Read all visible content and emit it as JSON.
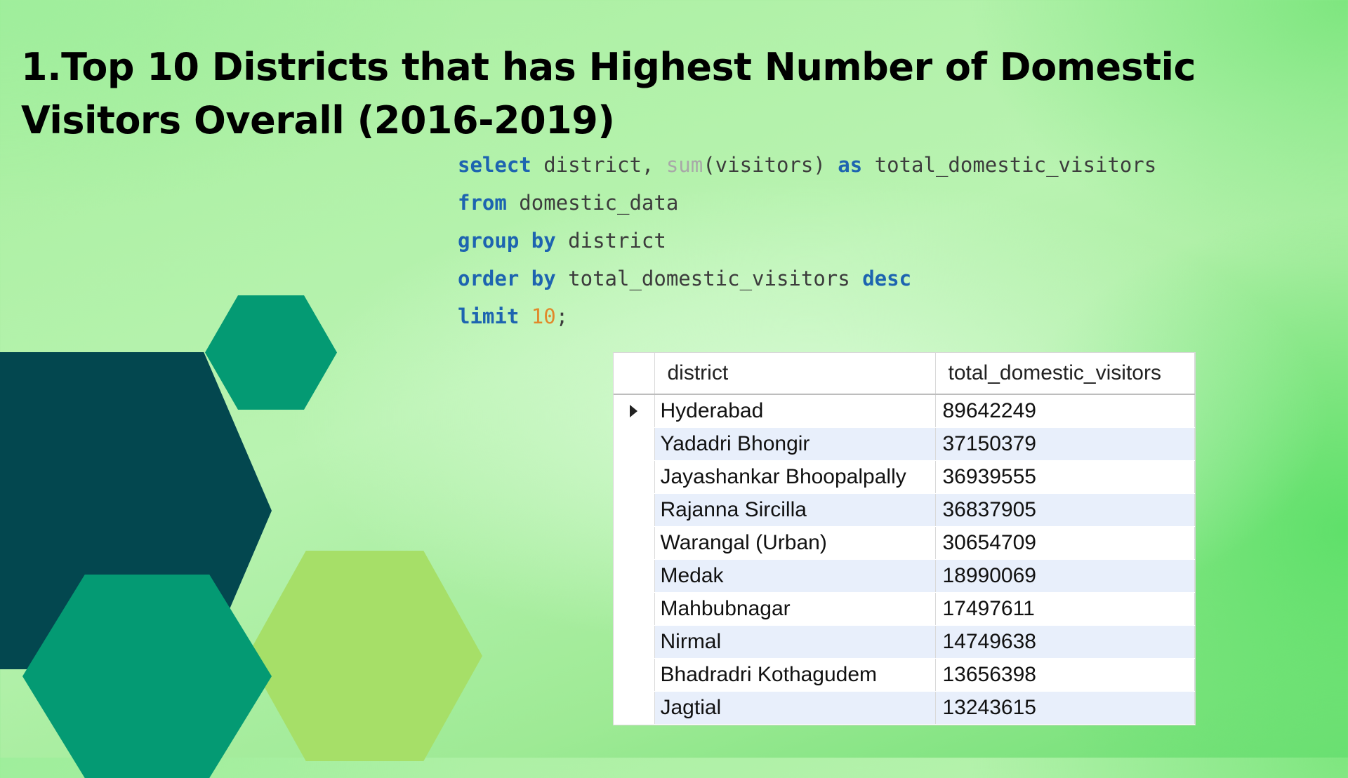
{
  "title": "1.Top 10 Districts that has Highest Number of Domestic Visitors Overall (2016-2019)",
  "query": {
    "line1": {
      "select": "select",
      "a": " district, ",
      "sum": "sum",
      "b": "(visitors) ",
      "as": "as",
      "c": " total_domestic_visitors"
    },
    "line2": {
      "from": "from",
      "a": " domestic_data"
    },
    "line3": {
      "group": "group",
      "sp": " ",
      "by": "by",
      "a": " district"
    },
    "line4": {
      "order": "order",
      "sp": " ",
      "by": "by",
      "a": " total_domestic_visitors ",
      "desc": "desc"
    },
    "line5": {
      "limit": "limit",
      "sp": " ",
      "num": "10",
      "end": ";"
    }
  },
  "result_grid": {
    "columns": [
      "district",
      "total_domestic_visitors"
    ],
    "rows": [
      {
        "district": "Hyderabad",
        "total_domestic_visitors": "89642249"
      },
      {
        "district": "Yadadri Bhongir",
        "total_domestic_visitors": "37150379"
      },
      {
        "district": "Jayashankar Bhoopalpally",
        "total_domestic_visitors": "36939555"
      },
      {
        "district": "Rajanna Sircilla",
        "total_domestic_visitors": "36837905"
      },
      {
        "district": "Warangal (Urban)",
        "total_domestic_visitors": "30654709"
      },
      {
        "district": "Medak",
        "total_domestic_visitors": "18990069"
      },
      {
        "district": "Mahbubnagar",
        "total_domestic_visitors": "17497611"
      },
      {
        "district": "Nirmal",
        "total_domestic_visitors": "14749638"
      },
      {
        "district": "Bhadradri Kothagudem",
        "total_domestic_visitors": "13656398"
      },
      {
        "district": "Jagtial",
        "total_domestic_visitors": "13243615"
      }
    ],
    "selected_row_indicator": "row-selector-arrow-icon"
  },
  "colors": {
    "keyword": "#1d64b0",
    "function": "#a8a8a8",
    "number": "#e1882a",
    "hex_dark": "#03474f",
    "hex_teal": "#049a73",
    "hex_lime": "#a6df68"
  }
}
